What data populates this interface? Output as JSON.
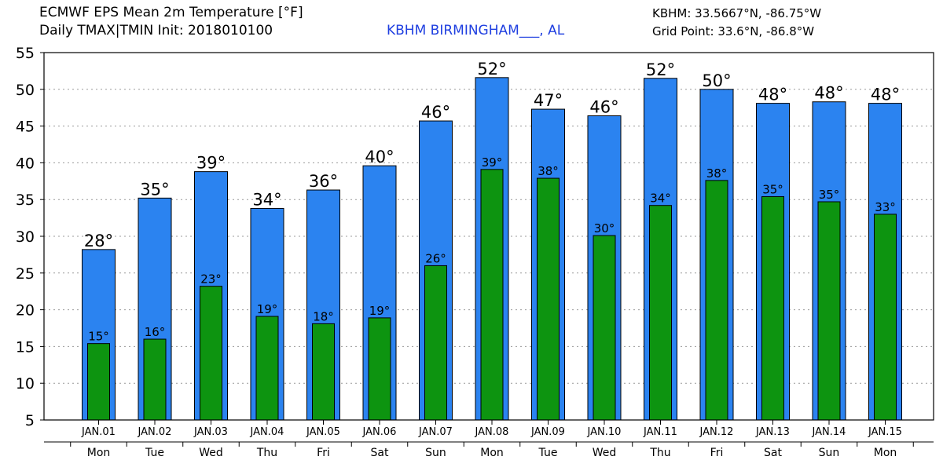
{
  "header": {
    "title_line1": "ECMWF EPS Mean 2m Temperature [°F]",
    "title_line2": "Daily TMAX|TMIN Init: 2018010100",
    "station": "KBHM BIRMINGHAM___, AL",
    "coords_line1": "KBHM: 33.5667°N, -86.75°W",
    "coords_line2": "Grid Point: 33.6°N, -86.8°W"
  },
  "chart_data": {
    "type": "bar",
    "title": "ECMWF EPS Mean 2m Temperature [°F]",
    "categories": [
      "JAN.01",
      "JAN.02",
      "JAN.03",
      "JAN.04",
      "JAN.05",
      "JAN.06",
      "JAN.07",
      "JAN.08",
      "JAN.09",
      "JAN.10",
      "JAN.11",
      "JAN.12",
      "JAN.13",
      "JAN.14",
      "JAN.15"
    ],
    "weekdays": [
      "Mon",
      "Tue",
      "Wed",
      "Thu",
      "Fri",
      "Sat",
      "Sun",
      "Mon",
      "Tue",
      "Wed",
      "Thu",
      "Fri",
      "Sat",
      "Sun",
      "Mon"
    ],
    "series": [
      {
        "name": "TMAX",
        "color": "#2b83f0",
        "values": [
          28.2,
          35.2,
          38.8,
          33.8,
          36.3,
          39.6,
          45.7,
          51.6,
          47.3,
          46.4,
          51.5,
          50.0,
          48.1,
          48.3,
          48.1
        ],
        "labels": [
          "28°",
          "35°",
          "39°",
          "34°",
          "36°",
          "40°",
          "46°",
          "52°",
          "47°",
          "46°",
          "52°",
          "50°",
          "48°",
          "48°",
          "48°"
        ]
      },
      {
        "name": "TMIN",
        "color": "#0d9410",
        "values": [
          15.4,
          16.0,
          23.2,
          19.1,
          18.1,
          18.9,
          26.0,
          39.1,
          37.9,
          30.1,
          34.2,
          37.6,
          35.4,
          34.7,
          33.0
        ],
        "labels": [
          "15°",
          "16°",
          "23°",
          "19°",
          "18°",
          "19°",
          "26°",
          "39°",
          "38°",
          "30°",
          "34°",
          "38°",
          "35°",
          "35°",
          "33°"
        ]
      }
    ],
    "ylim": [
      5,
      55
    ],
    "yticks": [
      5,
      10,
      15,
      20,
      25,
      30,
      35,
      40,
      45,
      50,
      55
    ],
    "grid": true,
    "xlabel": "",
    "ylabel": ""
  }
}
